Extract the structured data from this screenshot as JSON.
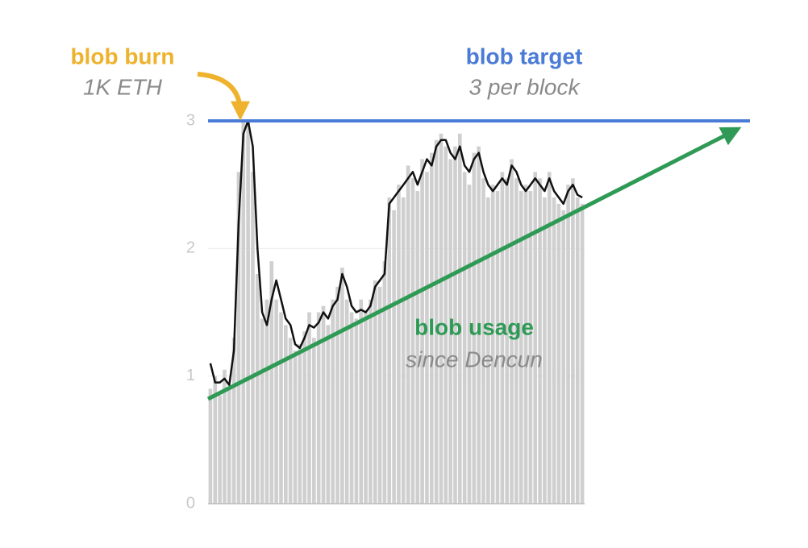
{
  "chart_data": {
    "type": "bar",
    "categories": [
      null,
      null,
      null,
      null,
      null,
      null,
      null,
      null,
      null,
      null,
      null,
      null,
      null,
      null,
      null,
      null,
      null,
      null,
      null,
      null,
      null,
      null,
      null,
      null,
      null,
      null,
      null,
      null,
      null,
      null,
      null,
      null,
      null,
      null,
      null,
      null,
      null,
      null,
      null,
      null,
      null,
      null,
      null,
      null,
      null,
      null,
      null,
      null,
      null,
      null,
      null,
      null,
      null,
      null,
      null,
      null,
      null,
      null,
      null,
      null,
      null,
      null,
      null,
      null,
      null,
      null,
      null,
      null,
      null,
      null,
      null,
      null,
      null,
      null,
      null,
      null,
      null,
      null,
      null,
      null
    ],
    "series": [
      {
        "type": "bar",
        "color": "#cfcfcf",
        "values": [
          0.9,
          1.0,
          0.85,
          1.05,
          0.9,
          1.3,
          2.6,
          3.0,
          3.0,
          2.6,
          1.8,
          1.45,
          1.6,
          1.9,
          1.6,
          1.5,
          1.4,
          1.3,
          1.2,
          1.25,
          1.35,
          1.5,
          1.3,
          1.5,
          1.55,
          1.4,
          1.6,
          1.7,
          1.85,
          1.6,
          1.5,
          1.45,
          1.6,
          1.5,
          1.6,
          1.75,
          1.7,
          1.9,
          2.4,
          2.3,
          2.5,
          2.4,
          2.65,
          2.55,
          2.45,
          2.7,
          2.6,
          2.75,
          2.85,
          2.9,
          2.8,
          2.7,
          2.8,
          2.9,
          2.6,
          2.5,
          2.75,
          2.8,
          2.55,
          2.4,
          2.5,
          2.45,
          2.6,
          2.55,
          2.7,
          2.55,
          2.45,
          2.5,
          2.45,
          2.6,
          2.55,
          2.4,
          2.6,
          2.4,
          2.35,
          2.3,
          2.5,
          2.55,
          2.4,
          2.35
        ]
      },
      {
        "type": "line",
        "color": "#111111",
        "values": [
          1.1,
          0.95,
          0.95,
          0.98,
          0.93,
          1.2,
          2.2,
          2.9,
          3.0,
          2.8,
          2.0,
          1.5,
          1.4,
          1.6,
          1.75,
          1.6,
          1.45,
          1.4,
          1.25,
          1.22,
          1.3,
          1.4,
          1.38,
          1.42,
          1.5,
          1.45,
          1.55,
          1.6,
          1.8,
          1.7,
          1.55,
          1.5,
          1.52,
          1.5,
          1.55,
          1.7,
          1.75,
          1.8,
          2.35,
          2.4,
          2.45,
          2.5,
          2.55,
          2.6,
          2.5,
          2.6,
          2.7,
          2.65,
          2.8,
          2.85,
          2.85,
          2.75,
          2.7,
          2.8,
          2.65,
          2.6,
          2.7,
          2.75,
          2.6,
          2.5,
          2.45,
          2.5,
          2.55,
          2.5,
          2.65,
          2.6,
          2.5,
          2.45,
          2.5,
          2.55,
          2.5,
          2.45,
          2.55,
          2.45,
          2.4,
          2.35,
          2.45,
          2.5,
          2.42,
          2.4
        ]
      }
    ],
    "ylim": [
      0,
      3
    ],
    "yticks": [
      0,
      1,
      2,
      3
    ],
    "grid": true,
    "target_line": {
      "value": 3,
      "color": "#4a7bd6"
    },
    "annotations": [
      {
        "title": "blob burn",
        "subtitle": "1K ETH",
        "color": "#efb22c"
      },
      {
        "title": "blob target",
        "subtitle": "3 per block",
        "color": "#4a7bd6"
      },
      {
        "title": "blob usage",
        "subtitle": "since Dencun",
        "color": "#2e9a55"
      }
    ]
  }
}
